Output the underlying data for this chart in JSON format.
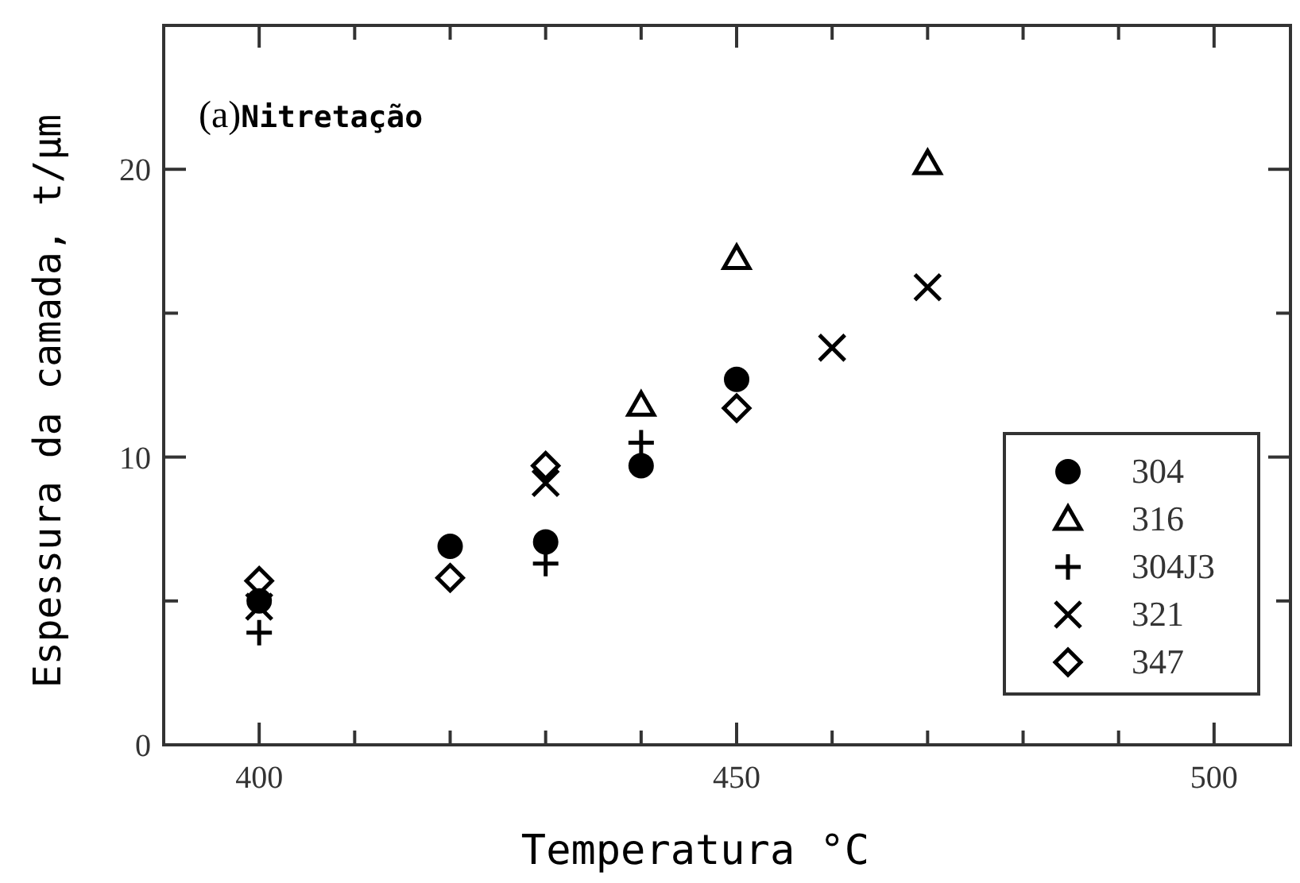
{
  "chart_data": {
    "type": "scatter",
    "annotations": [
      "(a)Nitretação"
    ],
    "xlabel": "Temperatura °C",
    "ylabel": "Espessura da camada, t/μm",
    "xlim": [
      390,
      508
    ],
    "xticks": [
      400,
      {
        "value": 410,
        "label": null
      },
      {
        "value": 420,
        "label": null
      },
      {
        "value": 430,
        "label": null
      },
      {
        "value": 440,
        "label": null
      },
      450,
      {
        "value": 460,
        "label": null
      },
      {
        "value": 470,
        "label": null
      },
      {
        "value": 480,
        "label": null
      },
      {
        "value": 490,
        "label": null
      },
      500
    ],
    "ylim": [
      0,
      25
    ],
    "yticks": [
      0,
      {
        "value": 5,
        "label": null
      },
      10,
      {
        "value": 15,
        "label": null
      },
      20
    ],
    "grid": false,
    "legend": "bottom right",
    "series": [
      {
        "name": "304",
        "color": "#000000",
        "marker": "circle",
        "x": [
          400,
          420,
          430,
          440,
          450
        ],
        "values": [
          5.0,
          6.9,
          7.05,
          9.7,
          12.7
        ]
      },
      {
        "name": "316",
        "color": "#000000",
        "marker": "triangle",
        "x": [
          440,
          450,
          470
        ],
        "values": [
          11.8,
          16.9,
          20.2
        ]
      },
      {
        "name": "304J3",
        "color": "#000000",
        "marker": "plus",
        "x": [
          400,
          430,
          440
        ],
        "values": [
          3.9,
          6.3,
          10.5
        ]
      },
      {
        "name": "321",
        "color": "#000000",
        "marker": "cross",
        "x": [
          400,
          430,
          460,
          470
        ],
        "values": [
          4.8,
          9.1,
          13.8,
          15.9
        ]
      },
      {
        "name": "347",
        "color": "#000000",
        "marker": "diamond",
        "x": [
          400,
          420,
          430,
          450
        ],
        "values": [
          5.7,
          5.8,
          9.7,
          11.7
        ]
      }
    ]
  }
}
